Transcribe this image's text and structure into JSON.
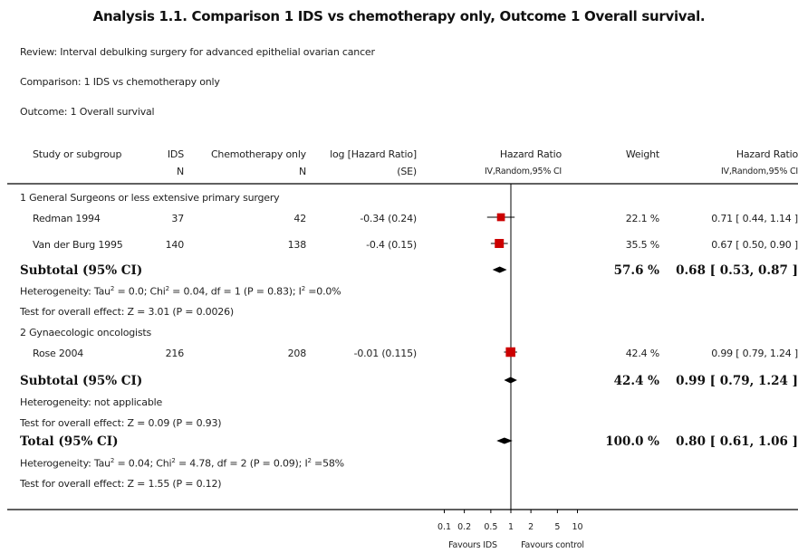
{
  "title": "Analysis 1.1.   Comparison 1 IDS vs chemotherapy only, Outcome 1 Overall survival.",
  "meta": {
    "review": "Review:   Interval debulking surgery for advanced epithelial ovarian cancer",
    "comparison": "Comparison:   1 IDS vs chemotherapy only",
    "outcome": "Outcome:   1 Overall survival"
  },
  "headers": {
    "study": "Study or subgroup",
    "ids": "IDS",
    "ids_sub": "N",
    "chemo": "Chemotherapy only",
    "chemo_sub": "N",
    "lhr": "log [Hazard Ratio]",
    "lhr_sub": "(SE)",
    "hr_plot": "Hazard Ratio",
    "hr_plot_sub": "IV,Random,95% CI",
    "weight": "Weight",
    "hr": "Hazard Ratio",
    "hr_sub": "IV,Random,95% CI"
  },
  "groups": [
    {
      "name": "1 General Surgeons or less extensive primary surgery",
      "studies": [
        {
          "name": "Redman 1994",
          "ids_n": "37",
          "chemo_n": "42",
          "log_hr_se": "-0.34 (0.24)",
          "weight": "22.1 %",
          "hr_ci": "0.71 [ 0.44, 1.14 ]"
        },
        {
          "name": "Van der Burg 1995",
          "ids_n": "140",
          "chemo_n": "138",
          "log_hr_se": "-0.4 (0.15)",
          "weight": "35.5 %",
          "hr_ci": "0.67 [ 0.50, 0.90 ]"
        }
      ],
      "subtotal_label": "Subtotal (95% CI)",
      "subtotal_weight": "57.6 %",
      "subtotal_hr": "0.68 [ 0.53, 0.87 ]",
      "heterogeneity": "Heterogeneity: Tau² = 0.0; Chi² = 0.04, df = 1 (P = 0.83); I² =0.0%",
      "overall_effect": "Test for overall effect: Z = 3.01 (P = 0.0026)"
    },
    {
      "name": "2 Gynaecologic oncologists",
      "studies": [
        {
          "name": "Rose 2004",
          "ids_n": "216",
          "chemo_n": "208",
          "log_hr_se": "-0.01 (0.115)",
          "weight": "42.4 %",
          "hr_ci": "0.99 [ 0.79, 1.24 ]"
        }
      ],
      "subtotal_label": "Subtotal (95% CI)",
      "subtotal_weight": "42.4 %",
      "subtotal_hr": "0.99 [ 0.79, 1.24 ]",
      "heterogeneity": "Heterogeneity: not applicable",
      "overall_effect": "Test for overall effect: Z = 0.09 (P = 0.93)"
    }
  ],
  "total": {
    "label": "Total (95% CI)",
    "weight": "100.0 %",
    "hr": "0.80 [ 0.61, 1.06 ]",
    "heterogeneity": "Heterogeneity: Tau² = 0.04; Chi² = 4.78, df = 2 (P = 0.09); I² =58%",
    "overall_effect": "Test for overall effect: Z = 1.55 (P = 0.12)"
  },
  "axis": {
    "ticks": [
      "0.1",
      "0.2",
      "0.5",
      "1",
      "2",
      "5",
      "10"
    ],
    "favours_left": "Favours IDS",
    "favours_right": "Favours control"
  },
  "colors": {
    "marker": "#cc0000",
    "diamond": "#000000"
  },
  "chart_data": {
    "type": "forest",
    "scale": "log",
    "xlim": [
      0.1,
      10
    ],
    "reference": 1,
    "ticks": [
      0.1,
      0.2,
      0.5,
      1,
      2,
      5,
      10
    ],
    "studies": [
      {
        "name": "Redman 1994",
        "hr": 0.71,
        "lo": 0.44,
        "hi": 1.14,
        "weight": 22.1
      },
      {
        "name": "Van der Burg 1995",
        "hr": 0.67,
        "lo": 0.5,
        "hi": 0.9,
        "weight": 35.5
      },
      {
        "name": "Rose 2004",
        "hr": 0.99,
        "lo": 0.79,
        "hi": 1.24,
        "weight": 42.4
      }
    ],
    "pooled": [
      {
        "name": "Subtotal (95% CI)",
        "hr": 0.68,
        "lo": 0.53,
        "hi": 0.87
      },
      {
        "name": "Subtotal (95% CI)",
        "hr": 0.99,
        "lo": 0.79,
        "hi": 1.24
      },
      {
        "name": "Total (95% CI)",
        "hr": 0.8,
        "lo": 0.61,
        "hi": 1.06
      }
    ]
  }
}
